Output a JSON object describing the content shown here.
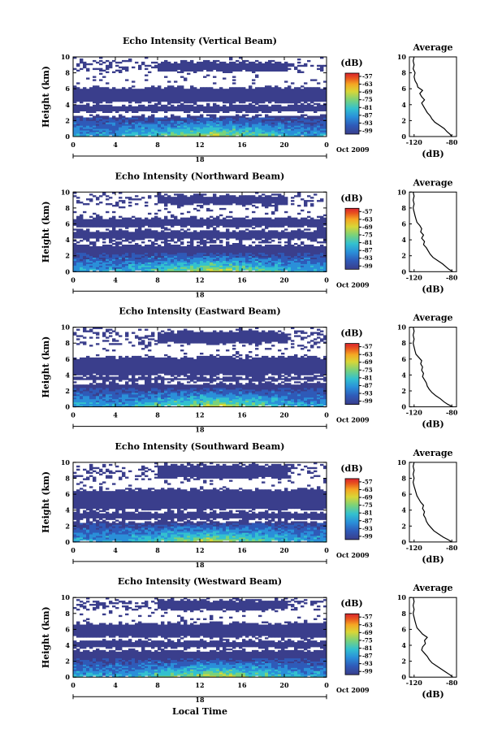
{
  "chart_data": {
    "type": "heatmap",
    "colorbar": {
      "unit": "(dB)",
      "ticks": [
        "-57",
        "-63",
        "-69",
        "-75",
        "-81",
        "-87",
        "-93",
        "-99"
      ],
      "range": [
        -99,
        -57
      ],
      "colors": [
        "#3a3e8c",
        "#2f5ab8",
        "#2a8fd9",
        "#33c1cf",
        "#7ad27b",
        "#d9d637",
        "#f5a623",
        "#e8531e",
        "#d9232e"
      ]
    },
    "x_axis": {
      "range": [
        0,
        24
      ],
      "ticks": [
        "0",
        "4",
        "8",
        "12",
        "16",
        "20",
        "0"
      ],
      "date_day": "18",
      "date_label": "Oct 2009",
      "label": "Local Time"
    },
    "y_axis": {
      "label": "Height (km)",
      "range": [
        0,
        10
      ],
      "ticks": [
        "0",
        "2",
        "4",
        "6",
        "8",
        "10"
      ]
    },
    "profile_axis": {
      "title": "Average",
      "xlabel": "(dB)",
      "xticks": [
        "-120",
        "-80"
      ],
      "xrange": [
        -125,
        -75
      ],
      "y_ticks": [
        "0",
        "2",
        "4",
        "6",
        "8",
        "10"
      ]
    },
    "panels": [
      {
        "title": "Echo Intensity (Vertical Beam)",
        "profile": [
          [
            -80,
            0.0
          ],
          [
            -82,
            0.3
          ],
          [
            -85,
            0.6
          ],
          [
            -88,
            1.0
          ],
          [
            -93,
            1.4
          ],
          [
            -98,
            1.8
          ],
          [
            -101,
            2.2
          ],
          [
            -103,
            2.6
          ],
          [
            -106,
            3.0
          ],
          [
            -108,
            3.4
          ],
          [
            -110,
            3.8
          ],
          [
            -112,
            4.2
          ],
          [
            -109,
            4.6
          ],
          [
            -112,
            5.0
          ],
          [
            -114,
            5.4
          ],
          [
            -111,
            5.8
          ],
          [
            -116,
            6.2
          ],
          [
            -117,
            6.6
          ],
          [
            -119,
            7.0
          ],
          [
            -120,
            7.5
          ],
          [
            -119,
            8.0
          ],
          [
            -121,
            8.5
          ],
          [
            -120,
            9.0
          ],
          [
            -121,
            9.5
          ],
          [
            -120,
            10.0
          ]
        ]
      },
      {
        "title": "Echo Intensity (Northward Beam)",
        "profile": [
          [
            -79,
            0.0
          ],
          [
            -83,
            0.3
          ],
          [
            -86,
            0.6
          ],
          [
            -90,
            1.0
          ],
          [
            -95,
            1.4
          ],
          [
            -100,
            1.8
          ],
          [
            -103,
            2.2
          ],
          [
            -105,
            2.6
          ],
          [
            -107,
            3.0
          ],
          [
            -110,
            3.4
          ],
          [
            -109,
            3.8
          ],
          [
            -112,
            4.2
          ],
          [
            -110,
            4.6
          ],
          [
            -113,
            5.0
          ],
          [
            -112,
            5.4
          ],
          [
            -114,
            5.8
          ],
          [
            -117,
            6.2
          ],
          [
            -118,
            6.6
          ],
          [
            -119,
            7.0
          ],
          [
            -120,
            7.5
          ],
          [
            -121,
            8.0
          ],
          [
            -120,
            8.5
          ],
          [
            -121,
            9.0
          ],
          [
            -120,
            9.5
          ],
          [
            -121,
            10.0
          ]
        ]
      },
      {
        "title": "Echo Intensity (Eastward Beam)",
        "profile": [
          [
            -79,
            0.0
          ],
          [
            -84,
            0.3
          ],
          [
            -88,
            0.6
          ],
          [
            -92,
            1.0
          ],
          [
            -97,
            1.4
          ],
          [
            -101,
            1.8
          ],
          [
            -104,
            2.2
          ],
          [
            -106,
            2.6
          ],
          [
            -107,
            3.0
          ],
          [
            -109,
            3.4
          ],
          [
            -111,
            3.8
          ],
          [
            -110,
            4.2
          ],
          [
            -112,
            4.6
          ],
          [
            -111,
            5.0
          ],
          [
            -113,
            5.4
          ],
          [
            -112,
            5.8
          ],
          [
            -115,
            6.2
          ],
          [
            -118,
            6.6
          ],
          [
            -119,
            7.0
          ],
          [
            -120,
            7.5
          ],
          [
            -121,
            8.0
          ],
          [
            -120,
            8.5
          ],
          [
            -121,
            9.0
          ],
          [
            -120,
            9.5
          ],
          [
            -121,
            10.0
          ]
        ]
      },
      {
        "title": "Echo Intensity (Southward Beam)",
        "profile": [
          [
            -80,
            0.0
          ],
          [
            -84,
            0.3
          ],
          [
            -89,
            0.6
          ],
          [
            -94,
            1.0
          ],
          [
            -99,
            1.4
          ],
          [
            -102,
            1.8
          ],
          [
            -105,
            2.2
          ],
          [
            -107,
            2.6
          ],
          [
            -108,
            3.0
          ],
          [
            -110,
            3.4
          ],
          [
            -109,
            3.8
          ],
          [
            -111,
            4.2
          ],
          [
            -110,
            4.6
          ],
          [
            -113,
            5.0
          ],
          [
            -115,
            5.4
          ],
          [
            -117,
            5.8
          ],
          [
            -118,
            6.2
          ],
          [
            -119,
            6.6
          ],
          [
            -120,
            7.0
          ],
          [
            -121,
            7.5
          ],
          [
            -120,
            8.0
          ],
          [
            -121,
            8.5
          ],
          [
            -120,
            9.0
          ],
          [
            -121,
            9.5
          ],
          [
            -120,
            10.0
          ]
        ]
      },
      {
        "title": "Echo Intensity (Westward Beam)",
        "profile": [
          [
            -79,
            0.0
          ],
          [
            -82,
            0.3
          ],
          [
            -86,
            0.6
          ],
          [
            -91,
            1.0
          ],
          [
            -96,
            1.4
          ],
          [
            -101,
            1.8
          ],
          [
            -104,
            2.2
          ],
          [
            -106,
            2.6
          ],
          [
            -109,
            3.0
          ],
          [
            -112,
            3.4
          ],
          [
            -111,
            3.8
          ],
          [
            -108,
            4.2
          ],
          [
            -109,
            4.6
          ],
          [
            -106,
            5.0
          ],
          [
            -111,
            5.4
          ],
          [
            -114,
            5.8
          ],
          [
            -117,
            6.2
          ],
          [
            -118,
            6.6
          ],
          [
            -119,
            7.0
          ],
          [
            -120,
            7.5
          ],
          [
            -121,
            8.0
          ],
          [
            -120,
            8.5
          ],
          [
            -121,
            9.0
          ],
          [
            -120,
            9.5
          ],
          [
            -121,
            10.0
          ]
        ]
      }
    ]
  }
}
